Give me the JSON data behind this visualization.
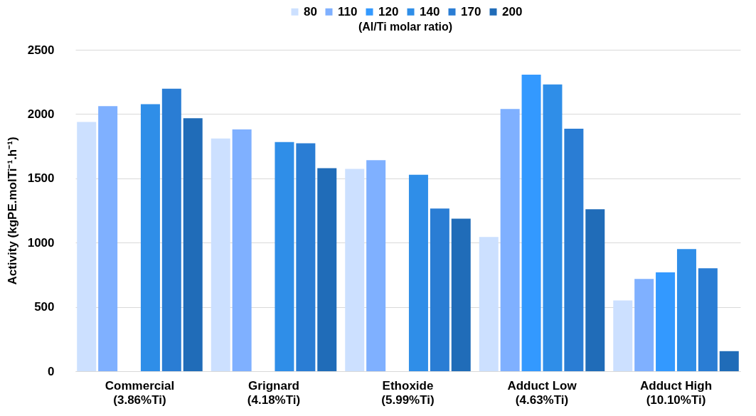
{
  "chart_data": {
    "type": "bar",
    "ylabel": "Activity (kgPE.molTi⁻¹.h⁻¹)",
    "legend_title": "(Al/Ti molar ratio)",
    "categories": [
      "Commercial\n(3.86%Ti)",
      "Grignard\n(4.18%Ti)",
      "Ethoxide\n(5.99%Ti)",
      "Adduct Low\n(4.63%Ti)",
      "Adduct High\n(10.10%Ti)"
    ],
    "series": [
      {
        "name": "80",
        "color": "#cce0ff",
        "values": [
          1939,
          1810,
          1573,
          1044,
          550
        ]
      },
      {
        "name": "110",
        "color": "#7fb0ff",
        "values": [
          2061,
          1880,
          1642,
          2040,
          718
        ]
      },
      {
        "name": "120",
        "color": "#3399ff",
        "values": [
          null,
          null,
          null,
          2306,
          769
        ]
      },
      {
        "name": "140",
        "color": "#2f8ee8",
        "values": [
          2077,
          1783,
          1528,
          2231,
          950
        ]
      },
      {
        "name": "170",
        "color": "#2a7dd4",
        "values": [
          2197,
          1772,
          1265,
          1886,
          800
        ]
      },
      {
        "name": "200",
        "color": "#206cb8",
        "values": [
          1967,
          1579,
          1187,
          1260,
          156
        ]
      }
    ],
    "ylim": [
      0,
      2500
    ],
    "yticks": [
      0,
      500,
      1000,
      1500,
      2000,
      2500
    ],
    "grid": "y",
    "legend": "top"
  }
}
